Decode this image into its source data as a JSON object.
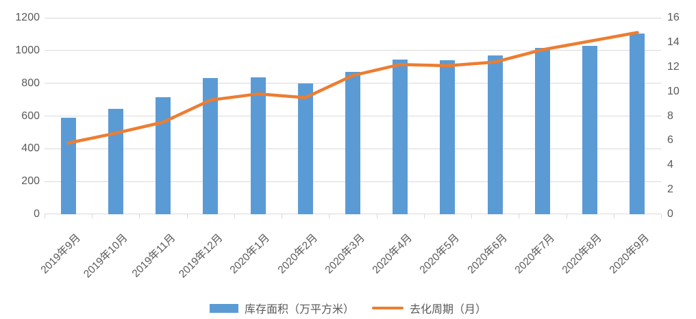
{
  "chart_data": {
    "type": "bar",
    "subtype": "combo bar + line, dual y-axis",
    "title": "",
    "xlabel": "",
    "ylabel": "",
    "categories": [
      "2019年9月",
      "2019年10月",
      "2019年11月",
      "2019年12月",
      "2020年1月",
      "2020年2月",
      "2020年3月",
      "2020年4月",
      "2020年5月",
      "2020年6月",
      "2020年7月",
      "2020年8月",
      "2020年9月"
    ],
    "series": [
      {
        "name": "库存面积（万平方米）",
        "type": "bar",
        "axis": "left",
        "color": "#5B9BD5",
        "values": [
          590,
          645,
          715,
          830,
          835,
          800,
          870,
          945,
          940,
          970,
          1015,
          1030,
          1105
        ]
      },
      {
        "name": "去化周期（月）",
        "type": "line",
        "axis": "right",
        "color": "#ED7D31",
        "values": [
          5.8,
          6.6,
          7.5,
          9.3,
          9.8,
          9.5,
          11.3,
          12.2,
          12.1,
          12.4,
          13.4,
          14.1,
          14.8
        ]
      }
    ],
    "left_axis": {
      "min": 0,
      "max": 1200,
      "step": 200,
      "ticks": [
        0,
        200,
        400,
        600,
        800,
        1000,
        1200
      ]
    },
    "right_axis": {
      "min": 0,
      "max": 16,
      "step": 2,
      "ticks": [
        0,
        2,
        4,
        6,
        8,
        10,
        12,
        14,
        16
      ]
    },
    "grid": {
      "horizontal": true,
      "lines_at": "left_axis_ticks",
      "color": "#D9D9D9"
    },
    "legend_position": "bottom-center"
  },
  "colors": {
    "bar": "#5B9BD5",
    "line": "#ED7D31",
    "grid": "#D9D9D9",
    "axis_text": "#595959",
    "background": "#FFFFFF"
  },
  "legend": {
    "items": [
      {
        "label": "库存面积（万平方米）",
        "swatch": "bar"
      },
      {
        "label": "去化周期（月）",
        "swatch": "line"
      }
    ]
  }
}
